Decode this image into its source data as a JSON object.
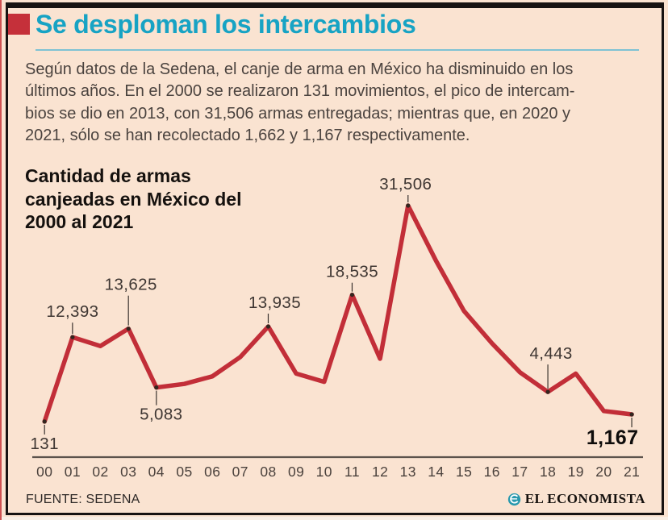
{
  "header": {
    "title": "Se desploman los intercambios"
  },
  "intro": {
    "text": "Según datos de la Sedena, el canje de arma en México ha disminuido en los\núltimos años. En el 2000 se realizaron 131 movimientos, el pico de intercam-\nbios se dio en 2013, con 31,506 armas entregadas; mientras que, en 2020 y\n2021, sólo se han recolectado 1,662 y 1,167 respectivamente."
  },
  "chart": {
    "title_text": "Cantidad de armas\ncanjeadas en México del\n2000 al 2021"
  },
  "chart_data": {
    "type": "line",
    "title": "Cantidad de armas canjeadas en México del 2000 al 2021",
    "x_tick_labels": [
      "00",
      "01",
      "02",
      "03",
      "04",
      "05",
      "06",
      "07",
      "08",
      "09",
      "10",
      "11",
      "12",
      "13",
      "14",
      "15",
      "16",
      "17",
      "18",
      "19",
      "20",
      "21"
    ],
    "values": [
      131,
      12393,
      11100,
      13625,
      5083,
      5600,
      6700,
      9500,
      13935,
      7100,
      5900,
      18535,
      9250,
      31506,
      23500,
      16200,
      11500,
      7300,
      4443,
      7100,
      1662,
      1167
    ],
    "annotations": [
      {
        "i": 0,
        "label": "131",
        "side": "below",
        "tick": 12,
        "dx": 0,
        "bold": false
      },
      {
        "i": 1,
        "label": "12,393",
        "side": "above",
        "tick": 14,
        "dx": 0,
        "bold": false
      },
      {
        "i": 3,
        "label": "13,625",
        "side": "above",
        "tick": 37,
        "dx": 3,
        "bold": false
      },
      {
        "i": 4,
        "label": "5,083",
        "side": "below",
        "tick": 18,
        "dx": 6,
        "bold": false
      },
      {
        "i": 8,
        "label": "13,935",
        "side": "above",
        "tick": 12,
        "dx": 8,
        "bold": false
      },
      {
        "i": 11,
        "label": "18,535",
        "side": "above",
        "tick": 11,
        "dx": 0,
        "bold": false
      },
      {
        "i": 13,
        "label": "31,506",
        "side": "above",
        "tick": 9,
        "dx": -3,
        "bold": false
      },
      {
        "i": 18,
        "label": "4,443",
        "side": "above",
        "tick": 30,
        "dx": 4,
        "bold": false
      },
      {
        "i": 21,
        "label": "1,167",
        "side": "below",
        "tick": 12,
        "dx": -24,
        "bold": true
      }
    ],
    "ylim": [
      0,
      33000
    ],
    "grid": false,
    "legend": "none",
    "line_color": "#c22e38",
    "axis_color": "#5c534c",
    "dot_color": "#33261f",
    "tick_line_color": "#3a332f"
  },
  "colors": {
    "background": "#fae3d1",
    "title_cyan": "#17a3c4",
    "title_underline": "#7fc2d3",
    "accent_block": "#c5303a",
    "line_red": "#c22e38",
    "heading_ink": "#15110e",
    "body_text": "#4b433f"
  },
  "footer": {
    "source": "FUENTE: SEDENA",
    "brand": "EL ECONOMISTA",
    "brand_icon": "el-economista-globe-icon"
  }
}
